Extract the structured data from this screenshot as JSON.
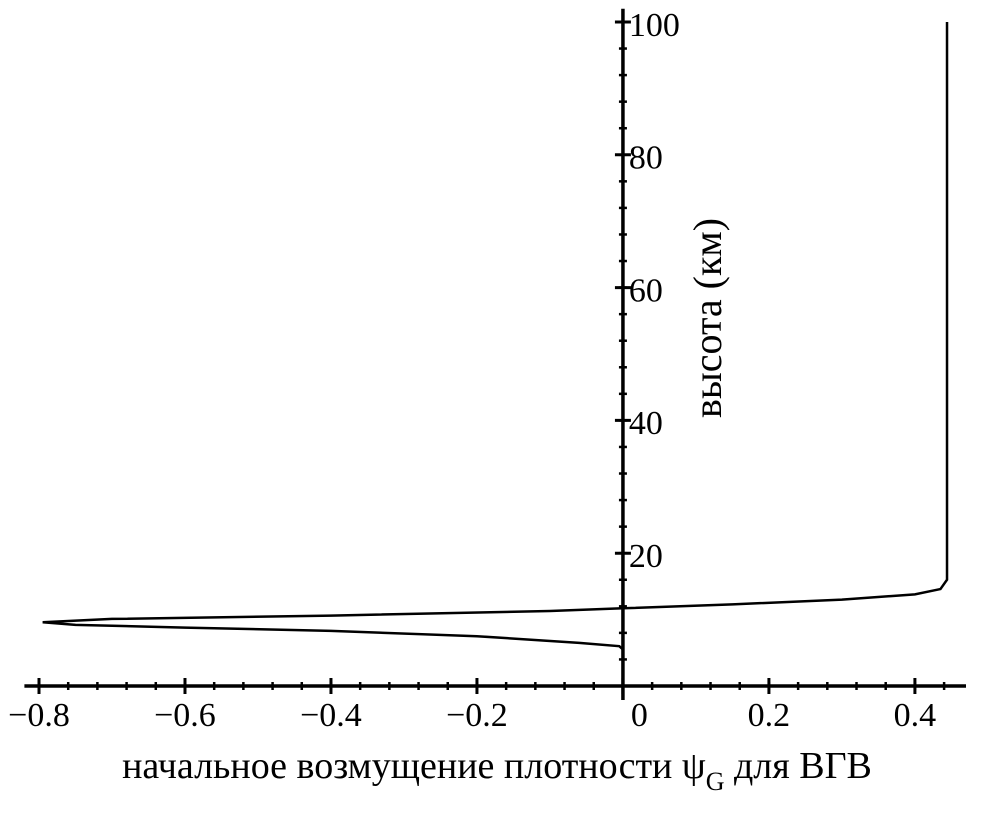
{
  "chart_data": {
    "type": "line",
    "y_label": "высота (км)",
    "x_label": {
      "main": "начальное возмущение плотности ψ",
      "subscript": "G",
      "tail": " для ВГВ"
    },
    "series": [
      {
        "color": "#000000",
        "x": [
          0.0,
          -0.005,
          -0.06,
          -0.2,
          -0.4,
          -0.6,
          -0.75,
          -0.795,
          -0.7,
          -0.4,
          -0.1,
          0.0,
          0.15,
          0.3,
          0.4,
          0.435,
          0.444,
          0.444,
          0.444,
          0.444
        ],
        "values": [
          5.5,
          6,
          6.5,
          7.5,
          8.3,
          8.8,
          9.2,
          9.6,
          10.1,
          10.6,
          11.3,
          11.7,
          12.3,
          13.0,
          13.8,
          14.6,
          16,
          30,
          60,
          100
        ]
      }
    ],
    "xlim": [
      -0.82,
      0.47
    ],
    "ylim": [
      0,
      102
    ],
    "xticks": [
      {
        "value": -0.8,
        "label": "−0.8"
      },
      {
        "value": -0.6,
        "label": "−0.6"
      },
      {
        "value": -0.4,
        "label": "−0.4"
      },
      {
        "value": -0.2,
        "label": "−0.2"
      },
      0,
      0.2,
      0.4
    ],
    "yticks": [
      20,
      40,
      60,
      80,
      100
    ],
    "xminorticks": [
      -0.8,
      -0.76,
      -0.72,
      -0.68,
      -0.64,
      -0.6,
      -0.56,
      -0.52,
      -0.48,
      -0.44,
      -0.4,
      -0.36,
      -0.32,
      -0.28,
      -0.24,
      -0.2,
      -0.16,
      -0.12,
      -0.08,
      -0.04,
      0,
      0.04,
      0.08,
      0.12,
      0.16,
      0.2,
      0.24,
      0.28,
      0.32,
      0.36,
      0.4,
      0.44
    ],
    "yminorticks": [
      0,
      4,
      8,
      12,
      16,
      20,
      24,
      28,
      32,
      36,
      40,
      44,
      48,
      52,
      56,
      60,
      64,
      68,
      72,
      76,
      80,
      84,
      88,
      92,
      96,
      100
    ],
    "grid": false
  }
}
